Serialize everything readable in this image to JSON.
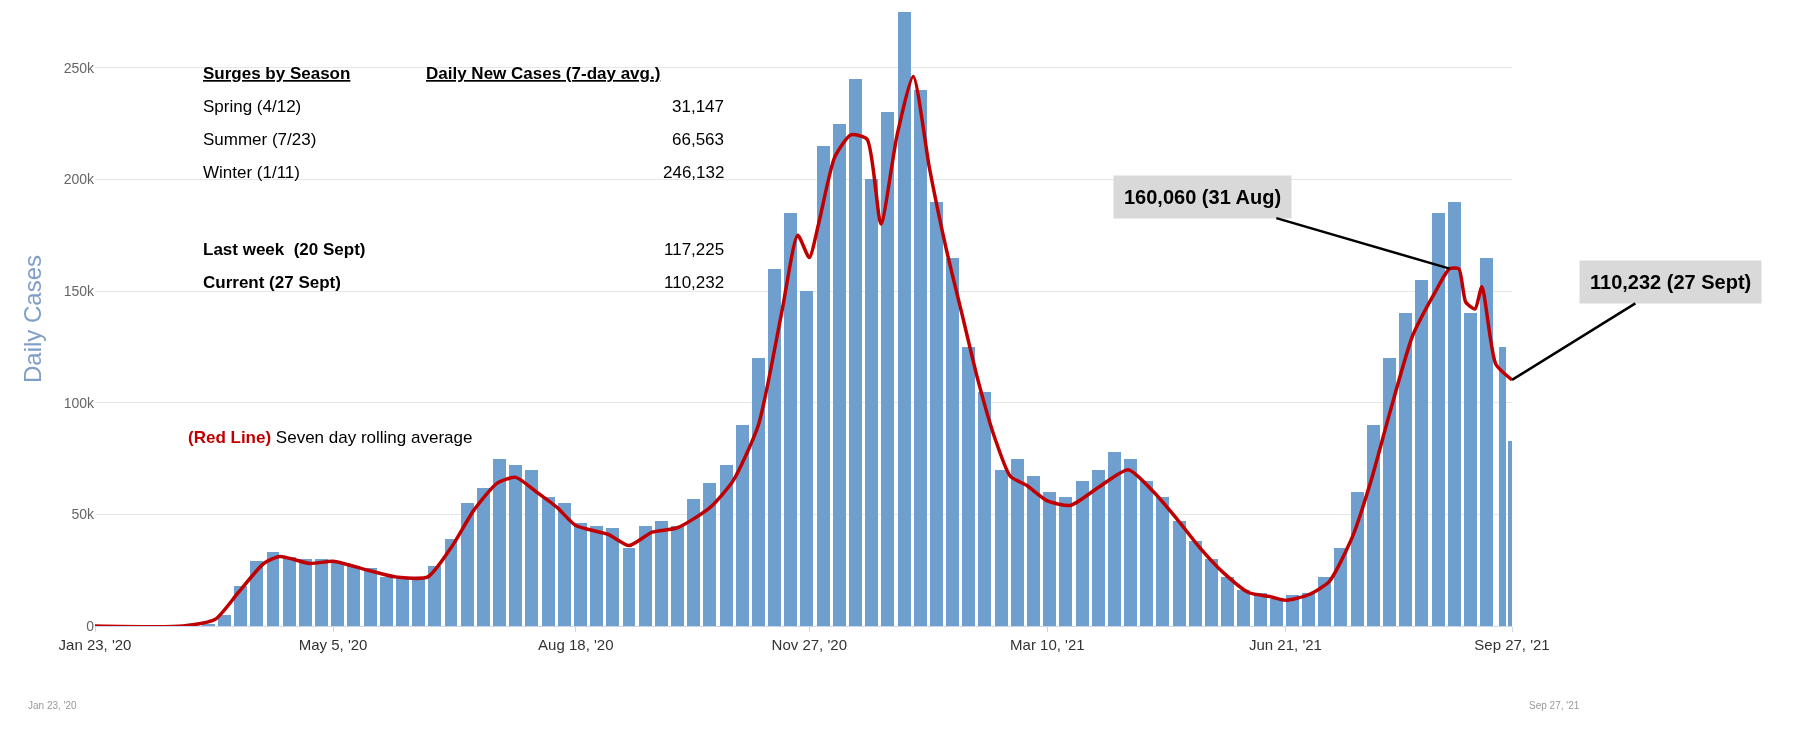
{
  "chart_data": {
    "type": "bar",
    "ylabel": "Daily Cases",
    "xlim": [
      "2020-01-23",
      "2021-09-27"
    ],
    "xticks": [
      {
        "value": "2020-01-23",
        "label": "Jan 23, '20"
      },
      {
        "value": "2020-05-05",
        "label": "May 5, '20"
      },
      {
        "value": "2020-08-18",
        "label": "Aug 18, '20"
      },
      {
        "value": "2020-11-27",
        "label": "Nov 27, '20"
      },
      {
        "value": "2021-03-10",
        "label": "Mar 10, '21"
      },
      {
        "value": "2021-06-21",
        "label": "Jun 21, '21"
      },
      {
        "value": "2021-09-27",
        "label": "Sep 27, '21"
      }
    ],
    "ylim": [
      0,
      275000
    ],
    "yticks": [
      0,
      {
        "value": 50000,
        "label": "50k"
      },
      {
        "value": 100000,
        "label": "100k"
      },
      {
        "value": 150000,
        "label": "150k"
      },
      {
        "value": 200000,
        "label": "200k"
      },
      {
        "value": 250000,
        "label": "250k"
      }
    ],
    "grid": "y",
    "series": [
      {
        "color": "#6f9fcf",
        "x": [
          "2020-01-23",
          "2020-01-30",
          "2020-02-06",
          "2020-02-13",
          "2020-02-20",
          "2020-02-27",
          "2020-03-05",
          "2020-03-12",
          "2020-03-19",
          "2020-03-26",
          "2020-04-02",
          "2020-04-09",
          "2020-04-16",
          "2020-04-23",
          "2020-04-30",
          "2020-05-07",
          "2020-05-14",
          "2020-05-21",
          "2020-05-28",
          "2020-06-04",
          "2020-06-11",
          "2020-06-18",
          "2020-06-25",
          "2020-07-02",
          "2020-07-09",
          "2020-07-16",
          "2020-07-23",
          "2020-07-30",
          "2020-08-06",
          "2020-08-13",
          "2020-08-20",
          "2020-08-27",
          "2020-09-03",
          "2020-09-10",
          "2020-09-17",
          "2020-09-24",
          "2020-10-01",
          "2020-10-08",
          "2020-10-15",
          "2020-10-22",
          "2020-10-29",
          "2020-11-05",
          "2020-11-12",
          "2020-11-19",
          "2020-11-26",
          "2020-12-03",
          "2020-12-10",
          "2020-12-17",
          "2020-12-24",
          "2020-12-31",
          "2021-01-07",
          "2021-01-14",
          "2021-01-21",
          "2021-01-28",
          "2021-02-04",
          "2021-02-11",
          "2021-02-18",
          "2021-02-25",
          "2021-03-04",
          "2021-03-11",
          "2021-03-18",
          "2021-03-25",
          "2021-04-01",
          "2021-04-08",
          "2021-04-15",
          "2021-04-22",
          "2021-04-29",
          "2021-05-06",
          "2021-05-13",
          "2021-05-20",
          "2021-05-27",
          "2021-06-03",
          "2021-06-10",
          "2021-06-17",
          "2021-06-24",
          "2021-07-01",
          "2021-07-08",
          "2021-07-15",
          "2021-07-22",
          "2021-07-29",
          "2021-08-05",
          "2021-08-12",
          "2021-08-19",
          "2021-08-26",
          "2021-09-02",
          "2021-09-09",
          "2021-09-16",
          "2021-09-23",
          "2021-09-27"
        ],
        "values": [
          0,
          0,
          0,
          0,
          0,
          0,
          0,
          1000,
          5000,
          18000,
          29000,
          33000,
          31000,
          30000,
          30000,
          28000,
          27000,
          26000,
          22000,
          22000,
          22000,
          27000,
          39000,
          55000,
          62000,
          75000,
          72000,
          70000,
          58000,
          55000,
          46000,
          45000,
          44000,
          35000,
          45000,
          47000,
          45000,
          57000,
          64000,
          72000,
          90000,
          120000,
          160000,
          185000,
          150000,
          215000,
          225000,
          245000,
          200000,
          230000,
          275000,
          240000,
          190000,
          165000,
          125000,
          105000,
          70000,
          75000,
          67000,
          60000,
          58000,
          65000,
          70000,
          78000,
          75000,
          65000,
          58000,
          47000,
          38000,
          30000,
          22000,
          16000,
          15000,
          12000,
          14000,
          15000,
          22000,
          35000,
          60000,
          90000,
          120000,
          140000,
          155000,
          185000,
          190000,
          140000,
          165000,
          125000,
          83000
        ]
      },
      {
        "type": "line",
        "color": "#c00000",
        "x": [
          "2020-01-23",
          "2020-03-01",
          "2020-03-15",
          "2020-03-25",
          "2020-04-05",
          "2020-04-12",
          "2020-04-25",
          "2020-05-05",
          "2020-05-20",
          "2020-06-01",
          "2020-06-15",
          "2020-06-25",
          "2020-07-05",
          "2020-07-15",
          "2020-07-23",
          "2020-08-01",
          "2020-08-10",
          "2020-08-18",
          "2020-09-01",
          "2020-09-10",
          "2020-09-20",
          "2020-10-01",
          "2020-10-15",
          "2020-10-25",
          "2020-11-05",
          "2020-11-15",
          "2020-11-22",
          "2020-11-27",
          "2020-12-01",
          "2020-12-08",
          "2020-12-15",
          "2020-12-22",
          "2020-12-28",
          "2021-01-04",
          "2021-01-11",
          "2021-01-18",
          "2021-01-25",
          "2021-02-01",
          "2021-02-08",
          "2021-02-15",
          "2021-02-22",
          "2021-03-01",
          "2021-03-10",
          "2021-03-20",
          "2021-04-01",
          "2021-04-14",
          "2021-04-25",
          "2021-05-05",
          "2021-05-15",
          "2021-05-25",
          "2021-06-05",
          "2021-06-15",
          "2021-06-21",
          "2021-07-01",
          "2021-07-10",
          "2021-07-20",
          "2021-07-28",
          "2021-08-05",
          "2021-08-15",
          "2021-08-25",
          "2021-08-31",
          "2021-09-04",
          "2021-09-07",
          "2021-09-11",
          "2021-09-14",
          "2021-09-20",
          "2021-09-27"
        ],
        "values": [
          0,
          0,
          3000,
          15000,
          28000,
          31147,
          28000,
          29000,
          25000,
          22000,
          22000,
          35000,
          52000,
          64000,
          66563,
          60000,
          53000,
          45000,
          41000,
          36000,
          42000,
          44000,
          53000,
          65000,
          90000,
          140000,
          175000,
          165000,
          180000,
          210000,
          220000,
          218000,
          180000,
          220000,
          246132,
          205000,
          170000,
          140000,
          110000,
          85000,
          67000,
          63000,
          56000,
          54000,
          62000,
          70000,
          60000,
          48000,
          35000,
          24000,
          15000,
          13000,
          11500,
          14000,
          20000,
          40000,
          65000,
          95000,
          130000,
          150000,
          160060,
          160000,
          145000,
          142000,
          152000,
          117225,
          110232
        ]
      }
    ],
    "annotations": [
      "Surges by Season",
      "Daily New Cases (7-day avg.)",
      "Spring (4/12)",
      "31,147",
      "Summer (7/23)",
      "66,563",
      "Winter (1/11)",
      "246,132",
      "Last week  (20 Sept)",
      "117,225",
      "Current (27 Sept)",
      "110,232",
      "(Red Line) Seven day rolling average",
      {
        "text": "160,060 (31 Aug)",
        "x": "2021-08-31",
        "y": 160060
      },
      {
        "text": "110,232 (27 Sept)",
        "x": "2021-09-27",
        "y": 110232
      },
      "Jan 23, '20",
      "Sep 27, '21"
    ]
  }
}
